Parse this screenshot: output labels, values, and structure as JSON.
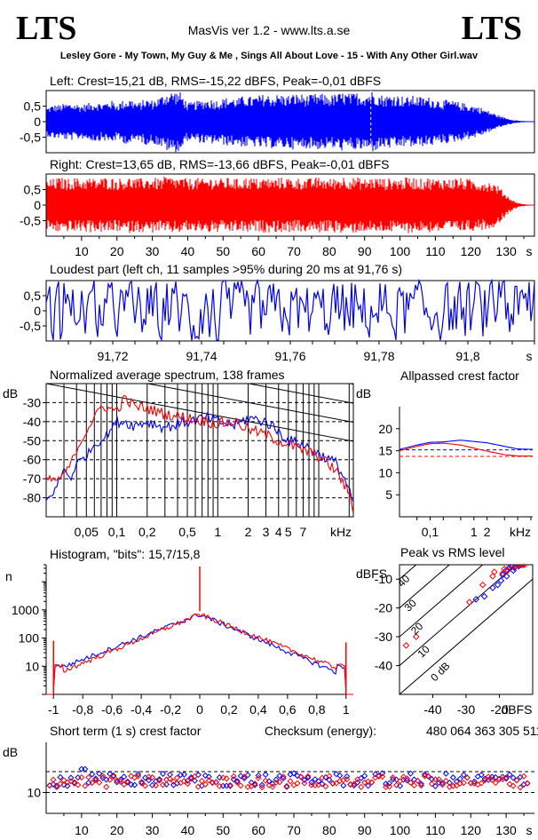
{
  "header": {
    "logo_left": "LTS",
    "logo_right": "LTS",
    "app_title": "MasVis ver 1.2 - www.lts.a.se",
    "file_title": "Lesley Gore - My Town, My Guy & Me , Sings All About Love - 15 - With Any Other Girl.wav"
  },
  "colors": {
    "left": "#0000ff",
    "right": "#ff0000",
    "ink": "#000000"
  },
  "chart_data": [
    {
      "id": "left-waveform",
      "type": "area",
      "title": "Left: Crest=15,21 dB, RMS=-15,22 dBFS, Peak=-0,01 dBFS",
      "ytick_labels": [
        "0,5",
        "0",
        "-0,5"
      ],
      "yticks": [
        0.5,
        0,
        -0.5
      ],
      "ylim": [
        -1,
        1
      ],
      "xlim": [
        0,
        138
      ],
      "envelope": {
        "t": [
          0,
          2,
          4,
          6,
          8,
          10,
          12,
          14,
          16,
          18,
          20,
          22,
          24,
          26,
          28,
          30,
          32,
          34,
          36,
          38,
          40,
          42,
          44,
          46,
          48,
          50,
          52,
          54,
          56,
          58,
          60,
          62,
          64,
          66,
          68,
          70,
          72,
          74,
          76,
          78,
          80,
          82,
          84,
          86,
          88,
          90,
          92,
          94,
          96,
          98,
          100,
          102,
          104,
          106,
          108,
          110,
          112,
          114,
          116,
          118,
          120,
          122,
          124,
          126,
          128,
          130,
          132,
          134,
          136,
          138
        ],
        "peak": [
          0.45,
          0.55,
          0.55,
          0.6,
          0.6,
          0.55,
          0.6,
          0.65,
          0.6,
          0.7,
          0.6,
          0.7,
          0.75,
          0.6,
          0.75,
          0.7,
          0.8,
          0.95,
          1.0,
          0.95,
          0.6,
          0.65,
          0.7,
          0.75,
          0.7,
          0.75,
          0.8,
          0.75,
          0.85,
          0.8,
          0.85,
          0.9,
          0.85,
          0.9,
          0.85,
          0.9,
          0.9,
          0.85,
          0.9,
          0.9,
          0.85,
          0.9,
          0.95,
          0.9,
          0.95,
          0.9,
          1.0,
          0.9,
          0.85,
          0.9,
          0.85,
          0.8,
          0.85,
          0.8,
          0.8,
          0.75,
          0.7,
          0.7,
          0.65,
          0.6,
          0.55,
          0.5,
          0.4,
          0.3,
          0.2,
          0.12,
          0.06,
          0.03,
          0.01,
          0
        ]
      },
      "marker_time": 91.76
    },
    {
      "id": "right-waveform",
      "type": "area",
      "title": "Right: Crest=13,65 dB, RMS=-13,66 dBFS, Peak=-0,01 dBFS",
      "ytick_labels": [
        "0,5",
        "0",
        "-0,5"
      ],
      "yticks": [
        0.5,
        0,
        -0.5
      ],
      "ylim": [
        -1,
        1
      ],
      "xlim": [
        0,
        138
      ],
      "envelope": {
        "t": [
          0,
          2,
          4,
          6,
          8,
          10,
          12,
          14,
          16,
          18,
          20,
          22,
          24,
          26,
          28,
          30,
          32,
          34,
          36,
          38,
          40,
          42,
          44,
          46,
          48,
          50,
          52,
          54,
          56,
          58,
          60,
          62,
          64,
          66,
          68,
          70,
          72,
          74,
          76,
          78,
          80,
          82,
          84,
          86,
          88,
          90,
          92,
          94,
          96,
          98,
          100,
          102,
          104,
          106,
          108,
          110,
          112,
          114,
          116,
          118,
          120,
          122,
          124,
          126,
          128,
          130,
          132,
          134,
          136,
          138
        ],
        "peak": [
          0.8,
          0.85,
          0.9,
          0.85,
          0.9,
          0.85,
          0.9,
          0.85,
          0.9,
          0.9,
          0.85,
          0.9,
          0.9,
          0.85,
          0.9,
          0.9,
          0.85,
          0.95,
          0.9,
          0.9,
          0.85,
          0.9,
          0.85,
          0.9,
          0.9,
          0.85,
          0.9,
          0.85,
          0.9,
          0.9,
          0.85,
          0.9,
          0.85,
          0.9,
          0.9,
          0.85,
          0.9,
          0.85,
          0.9,
          0.9,
          0.85,
          0.9,
          0.95,
          0.9,
          0.9,
          0.85,
          0.9,
          0.9,
          0.85,
          0.9,
          0.85,
          0.9,
          0.9,
          0.85,
          0.9,
          0.85,
          0.9,
          0.85,
          0.9,
          0.85,
          0.85,
          0.8,
          0.8,
          0.75,
          0.6,
          0.35,
          0.15,
          0.05,
          0.02,
          0
        ]
      },
      "xlabel_unit": "s",
      "xticks": [
        10,
        20,
        30,
        40,
        50,
        60,
        70,
        80,
        90,
        100,
        110,
        120,
        130
      ]
    },
    {
      "id": "loudest-part",
      "type": "line",
      "title": "Loudest part (left  ch, 11 samples >95% during 20 ms at 91,76 s)",
      "ytick_labels": [
        "0,5",
        "0",
        "-0,5"
      ],
      "yticks": [
        0.5,
        0,
        -0.5
      ],
      "ylim": [
        -1,
        1
      ],
      "xlim": [
        91.705,
        91.815
      ],
      "xticks": [
        91.72,
        91.74,
        91.76,
        91.78,
        91.8
      ],
      "xtick_labels": [
        "91,72",
        "91,74",
        "91,76",
        "91,78",
        "91,8"
      ],
      "xlabel_unit": "s"
    },
    {
      "id": "average-spectrum",
      "type": "line",
      "title": "Normalized average spectrum, 138 frames",
      "ylabel": "dB",
      "yticks": [
        -30,
        -40,
        -50,
        -60,
        -70,
        -80
      ],
      "ylim": [
        -90,
        -20
      ],
      "xlim": [
        0.02,
        22
      ],
      "xscale": "log",
      "xticks": [
        0.05,
        0.1,
        0.2,
        0.5,
        1,
        2,
        3,
        4,
        5,
        7
      ],
      "xtick_labels": [
        "0,05",
        "0,1",
        "0,2",
        "0,5",
        "1",
        "2",
        "3",
        "4",
        "5",
        "7"
      ],
      "xlabel_unit": "kHz",
      "series": [
        {
          "color": "#0000ff",
          "x": [
            0.02,
            0.025,
            0.03,
            0.035,
            0.04,
            0.05,
            0.06,
            0.07,
            0.08,
            0.1,
            0.12,
            0.15,
            0.2,
            0.3,
            0.5,
            0.8,
            1,
            1.5,
            2,
            3,
            4,
            5,
            7,
            10,
            15,
            20,
            22
          ],
          "y": [
            -82,
            -75,
            -65,
            -70,
            -62,
            -58,
            -52,
            -50,
            -47,
            -40,
            -40,
            -42,
            -40,
            -43,
            -40,
            -38,
            -40,
            -42,
            -38,
            -40,
            -45,
            -50,
            -52,
            -57,
            -62,
            -75,
            -85
          ]
        },
        {
          "color": "#ff0000",
          "x": [
            0.02,
            0.025,
            0.03,
            0.035,
            0.04,
            0.05,
            0.06,
            0.07,
            0.08,
            0.1,
            0.12,
            0.15,
            0.2,
            0.3,
            0.5,
            0.8,
            1,
            1.5,
            2,
            3,
            4,
            5,
            7,
            10,
            15,
            20,
            22
          ],
          "y": [
            -70,
            -71,
            -68,
            -62,
            -55,
            -45,
            -38,
            -32,
            -33,
            -34,
            -28,
            -32,
            -33,
            -36,
            -38,
            -40,
            -41,
            -40,
            -44,
            -47,
            -50,
            -52,
            -55,
            -58,
            -66,
            -78,
            -86
          ]
        }
      ]
    },
    {
      "id": "allpassed-crest",
      "type": "line",
      "title": "Allpassed crest factor",
      "ylabel": "dB",
      "yticks": [
        5,
        10,
        15,
        20
      ],
      "ylim": [
        0,
        25
      ],
      "xlim": [
        0.02,
        22
      ],
      "xscale": "log",
      "xticks": [
        0.1,
        1,
        2
      ],
      "xtick_labels": [
        "0,1",
        "1",
        "2"
      ],
      "xlabel_unit": "kHz",
      "reference_lines": [
        15.2,
        13.7
      ],
      "series": [
        {
          "color": "#0000ff",
          "x": [
            0.02,
            0.05,
            0.1,
            0.2,
            0.5,
            1,
            2,
            5,
            10,
            22
          ],
          "y": [
            15.3,
            16.3,
            16.9,
            17.0,
            17.4,
            17.1,
            16.8,
            16.0,
            15.4,
            15.3
          ]
        },
        {
          "color": "#ff0000",
          "x": [
            0.02,
            0.05,
            0.1,
            0.2,
            0.5,
            1,
            2,
            5,
            10,
            22
          ],
          "y": [
            15.0,
            16.0,
            16.6,
            16.7,
            16.3,
            15.6,
            14.9,
            14.1,
            13.8,
            13.8
          ]
        }
      ]
    },
    {
      "id": "histogram",
      "type": "line",
      "title": "Histogram, \"bits\": 15,7/15,8",
      "ylabel": "n",
      "yscale": "log",
      "yticks": [
        10,
        100,
        1000
      ],
      "ylim": [
        1,
        40000
      ],
      "xlim": [
        -1.05,
        1.05
      ],
      "xticks": [
        -1,
        -0.8,
        -0.6,
        -0.4,
        -0.2,
        0,
        0.2,
        0.4,
        0.6,
        0.8,
        1
      ],
      "xtick_labels": [
        "-1",
        "-0,8",
        "-0,6",
        "-0,4",
        "-0,2",
        "0",
        "0,2",
        "0,4",
        "0,6",
        "0,8",
        "1"
      ]
    },
    {
      "id": "peak-vs-rms",
      "type": "scatter",
      "title": "Peak vs RMS level",
      "ylabel": "dBFS",
      "xlabel_unit": "dBFS",
      "xlim": [
        -50,
        -10
      ],
      "ylim": [
        -50,
        -5
      ],
      "xticks": [
        -40,
        -30,
        -20
      ],
      "yticks": [
        -10,
        -20,
        -30,
        -40
      ],
      "diagonal_labels": [
        "40",
        "30",
        "20",
        "10",
        "0 dB"
      ],
      "series": [
        {
          "color": "#0000ff",
          "x": [
            -19.0,
            -18.0,
            -17.0,
            -16.5,
            -16.0,
            -15.5,
            -15.0,
            -14.5,
            -14.0,
            -13.5,
            -13.0,
            -14.2,
            -15.8,
            -17.8,
            -19.5,
            -20.5,
            -22.0,
            -24.5,
            -27.0
          ],
          "y": [
            -8.5,
            -7.0,
            -6.0,
            -5.5,
            -5.5,
            -6.0,
            -5.5,
            -5.0,
            -5.0,
            -5.0,
            -5.0,
            -5.5,
            -7.0,
            -9.0,
            -10.5,
            -12.0,
            -13.0,
            -16.0,
            -17.0
          ]
        },
        {
          "color": "#ff0000",
          "x": [
            -48.0,
            -45.0,
            -29.0,
            -25.0,
            -22.0,
            -19.0,
            -17.5,
            -16.0,
            -15.0,
            -14.0,
            -13.0,
            -12.5,
            -18.5,
            -21.5
          ],
          "y": [
            -33.0,
            -30.0,
            -18.0,
            -12.0,
            -9.0,
            -8.0,
            -7.0,
            -5.5,
            -5.5,
            -5.0,
            -5.0,
            -5.0,
            -6.5,
            -7.5
          ]
        }
      ]
    },
    {
      "id": "short-term-crest",
      "type": "scatter",
      "title": "Short term (1 s) crest factor",
      "ylabel": "dB",
      "yticks": [
        10
      ],
      "ylim": [
        5,
        22
      ],
      "xlim": [
        0,
        138
      ],
      "xticks": [
        10,
        20,
        30,
        40,
        50,
        60,
        70,
        80,
        90,
        100,
        110,
        120,
        130
      ],
      "xlabel_unit": "s",
      "reference_lines": [
        10,
        15
      ],
      "series": [
        {
          "color": "#0000ff",
          "base": 13.0,
          "spread": 1.6
        },
        {
          "color": "#ff0000",
          "base": 12.6,
          "spread": 1.4
        }
      ],
      "checksum_label": "Checksum (energy):",
      "checksum_value": "480 064 363 305 511"
    }
  ]
}
